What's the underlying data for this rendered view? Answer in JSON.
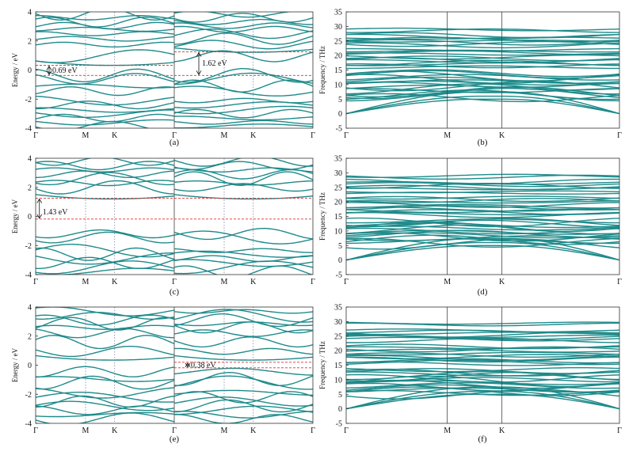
{
  "figure": {
    "captions": [
      "(a)",
      "(b)",
      "(c)",
      "(d)",
      "(e)",
      "(f)"
    ]
  },
  "colors": {
    "band": "#1f8a8a",
    "gap_line": "#e03030",
    "axis": "#333333"
  },
  "chart_data": [
    {
      "id": "a",
      "type": "line",
      "subtype": "band-structure",
      "caption": "(a)",
      "ylabel": "Energy / eV",
      "ylim": [
        -4,
        4
      ],
      "yticks": [
        4,
        2,
        0,
        -2,
        -4
      ],
      "xticks": [
        "Γ",
        "M",
        "K",
        "Γ",
        "M",
        "K",
        "Γ"
      ],
      "xtick_pos": [
        0,
        0.36,
        0.57,
        1.0,
        1.36,
        1.57,
        2.0
      ],
      "panels": 2,
      "grid": false,
      "conduction_bands": [
        0.32,
        0.95,
        1.75,
        2.15,
        2.5,
        2.8,
        3.05,
        3.3,
        3.6,
        3.85
      ],
      "valence_bands": [
        -0.37,
        -0.6,
        -1.1,
        -1.45,
        -2.1,
        -2.4,
        -2.75,
        -3.0,
        -3.3,
        -3.6,
        -3.85
      ],
      "gap_lines": [
        {
          "panel": 0,
          "cbm": 0.32,
          "vbm": -0.37
        },
        {
          "panel": 1,
          "cbm": 1.25,
          "vbm": -0.37
        }
      ],
      "annotations": [
        {
          "text": "0.69 eV",
          "panel": 0,
          "x": 0.12,
          "y": -0.02
        },
        {
          "text": "1.62 eV",
          "panel": 1,
          "x": 0.2,
          "y": 0.45
        }
      ]
    },
    {
      "id": "b",
      "type": "line",
      "subtype": "phonon-dispersion",
      "caption": "(b)",
      "ylabel": "Frequency / THz",
      "ylim": [
        -5,
        35
      ],
      "yticks": [
        35,
        30,
        25,
        20,
        15,
        10,
        5,
        0,
        -5
      ],
      "xticks": [
        "Γ",
        "M",
        "K",
        "Γ"
      ],
      "xtick_pos": [
        0,
        0.37,
        0.57,
        1.0
      ],
      "grid": false,
      "optical_levels": [
        5.5,
        6.5,
        7.5,
        8.5,
        9.5,
        10.5,
        11.5,
        12.5,
        13.5,
        16.0,
        17.0,
        18.0,
        19.0,
        20.5,
        21.5,
        23.5,
        24.5,
        25.5,
        26.5,
        28.5
      ]
    },
    {
      "id": "c",
      "type": "line",
      "subtype": "band-structure",
      "caption": "(c)",
      "ylabel": "Energy / eV",
      "ylim": [
        -4,
        4
      ],
      "yticks": [
        4,
        2,
        0,
        -2,
        -4
      ],
      "xticks": [
        "Γ",
        "M",
        "K",
        "Γ",
        "M",
        "K",
        "Γ"
      ],
      "xtick_pos": [
        0,
        0.36,
        0.57,
        1.0,
        1.36,
        1.57,
        2.0
      ],
      "panels": 2,
      "grid": false,
      "conduction_bands": [
        1.2,
        2.0,
        2.3,
        2.6,
        2.9,
        3.2,
        3.5,
        3.8
      ],
      "valence_bands": [
        -1.2,
        -1.45,
        -2.35,
        -2.6,
        -2.9,
        -3.2,
        -3.5,
        -3.8
      ],
      "gap_lines": [
        {
          "panel": 0,
          "cbm": 1.25,
          "vbm": -0.18
        },
        {
          "panel": 1,
          "cbm": 1.25,
          "vbm": -0.18
        }
      ],
      "annotations": [
        {
          "text": "1.43 eV",
          "panel": 0,
          "x": 0.05,
          "y": 0.3
        }
      ]
    },
    {
      "id": "d",
      "type": "line",
      "subtype": "phonon-dispersion",
      "caption": "(d)",
      "ylabel": "Frequency / THz",
      "ylim": [
        -5,
        35
      ],
      "yticks": [
        35,
        30,
        25,
        20,
        15,
        10,
        5,
        0,
        -5
      ],
      "xticks": [
        "Γ",
        "M",
        "K",
        "Γ"
      ],
      "xtick_pos": [
        0,
        0.37,
        0.57,
        1.0
      ],
      "grid": false,
      "optical_levels": [
        5.5,
        6.5,
        7.5,
        8.5,
        9.5,
        10.5,
        11.5,
        12.5,
        13.0,
        15.5,
        16.5,
        17.5,
        18.5,
        20.0,
        21.0,
        23.0,
        24.5,
        25.5,
        26.5,
        28.5
      ]
    },
    {
      "id": "e",
      "type": "line",
      "subtype": "band-structure",
      "caption": "(e)",
      "ylabel": "Energy / eV",
      "ylim": [
        -4,
        4
      ],
      "yticks": [
        4,
        2,
        0,
        -2,
        -4
      ],
      "xticks": [
        "Γ",
        "M",
        "K",
        "Γ",
        "M",
        "K",
        "Γ"
      ],
      "xtick_pos": [
        0,
        0.36,
        0.57,
        1.0,
        1.36,
        1.57,
        2.0
      ],
      "panels": 2,
      "grid": false,
      "conduction_bands": [
        0.35,
        0.95,
        1.6,
        2.2,
        2.6,
        2.85,
        3.1,
        3.4,
        3.7
      ],
      "valence_bands": [
        -0.45,
        -0.95,
        -1.2,
        -1.9,
        -2.2,
        -2.5,
        -2.8,
        -3.1,
        -3.4,
        -3.7
      ],
      "gap_lines": [
        {
          "panel": 1,
          "cbm": 0.2,
          "vbm": -0.18
        }
      ],
      "annotations": [
        {
          "text": "0.38 eV",
          "panel": 1,
          "x": 0.12,
          "y": 0.0
        }
      ]
    },
    {
      "id": "f",
      "type": "line",
      "subtype": "phonon-dispersion",
      "caption": "(f)",
      "ylabel": "Frequency / THz",
      "ylim": [
        -5,
        35
      ],
      "yticks": [
        35,
        30,
        25,
        20,
        15,
        10,
        5,
        0,
        -5
      ],
      "xticks": [
        "Γ",
        "M",
        "K",
        "Γ"
      ],
      "xtick_pos": [
        0,
        0.37,
        0.57,
        1.0
      ],
      "grid": false,
      "optical_levels": [
        5.0,
        6.0,
        7.0,
        8.0,
        9.0,
        10.0,
        11.0,
        12.0,
        13.0,
        15.5,
        16.5,
        17.5,
        18.5,
        20.0,
        21.0,
        23.5,
        24.5,
        25.5,
        26.5,
        29.0
      ]
    }
  ]
}
